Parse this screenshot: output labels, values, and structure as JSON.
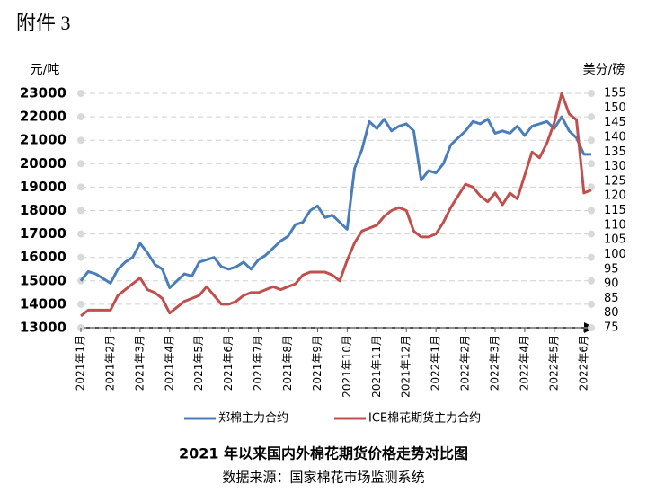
{
  "page_title": "附件 3",
  "chart_data": {
    "type": "line",
    "title": "2021 年以来国内外棉花期货价格走势对比图",
    "subtitle": "数据来源：国家棉花市场监测系统",
    "ylabel": "元/吨",
    "y2label": "美分/磅",
    "categories": [
      "2021年1月",
      null,
      null,
      null,
      "2021年2月",
      null,
      null,
      null,
      "2021年3月",
      null,
      null,
      null,
      "2021年4月",
      null,
      null,
      null,
      "2021年5月",
      null,
      null,
      null,
      "2021年6月",
      null,
      null,
      null,
      "2021年7月",
      null,
      null,
      null,
      "2021年8月",
      null,
      null,
      null,
      "2021年9月",
      null,
      null,
      null,
      "2021年10月",
      null,
      null,
      null,
      "2021年11月",
      null,
      null,
      null,
      "2021年12月",
      null,
      null,
      null,
      "2022年1月",
      null,
      null,
      null,
      "2022年2月",
      null,
      null,
      null,
      "2022年3月",
      null,
      null,
      null,
      "2022年4月",
      null,
      null,
      null,
      "2022年5月",
      null,
      null,
      null,
      "2022年6月",
      null
    ],
    "series": [
      {
        "name": "郑棉主力合约",
        "color": "#4a7ebb",
        "axis": "y",
        "values": [
          15000,
          15400,
          15300,
          15100,
          14900,
          15500,
          15800,
          16000,
          16600,
          16200,
          15700,
          15500,
          14700,
          15000,
          15300,
          15200,
          15800,
          15900,
          16000,
          15600,
          15500,
          15600,
          15800,
          15500,
          15900,
          16100,
          16400,
          16700,
          16900,
          17400,
          17500,
          18000,
          18200,
          17700,
          17800,
          17500,
          17200,
          19800,
          20600,
          21800,
          21500,
          21900,
          21400,
          21600,
          21700,
          21400,
          19300,
          19700,
          19600,
          20000,
          20800,
          21100,
          21400,
          21800,
          21700,
          21900,
          21300,
          21400,
          21300,
          21600,
          21200,
          21600,
          21700,
          21800,
          21500,
          22000,
          21400,
          21100,
          20400,
          20400
        ]
      },
      {
        "name": "ICE棉花期货主力合约",
        "color": "#c0504d",
        "axis": "y2",
        "values": [
          79,
          81,
          81,
          81,
          81,
          86,
          88,
          90,
          92,
          88,
          87,
          85,
          80,
          82,
          84,
          85,
          86,
          89,
          86,
          83,
          83,
          84,
          86,
          87,
          87,
          88,
          89,
          88,
          89,
          90,
          93,
          94,
          94,
          94,
          93,
          91,
          98,
          104,
          108,
          109,
          110,
          113,
          115,
          116,
          115,
          108,
          106,
          106,
          107,
          111,
          116,
          120,
          124,
          123,
          120,
          118,
          121,
          117,
          121,
          119,
          127,
          135,
          133,
          138,
          145,
          155,
          148,
          146,
          121,
          122
        ]
      }
    ],
    "ylim": [
      13000,
      23000
    ],
    "yticks": [
      13000,
      14000,
      15000,
      16000,
      17000,
      18000,
      19000,
      20000,
      21000,
      22000,
      23000
    ],
    "y2lim": [
      75,
      155
    ],
    "y2ticks": [
      75,
      80,
      85,
      90,
      95,
      100,
      105,
      110,
      115,
      120,
      125,
      130,
      135,
      140,
      145,
      150,
      155
    ],
    "grid": true,
    "legend": "bottom"
  }
}
